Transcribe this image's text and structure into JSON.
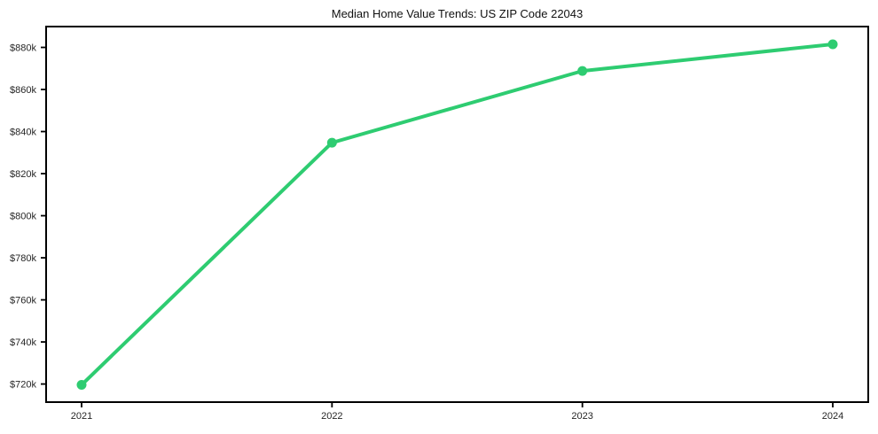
{
  "chart_data": {
    "type": "line",
    "title": "Median Home Value Trends: US ZIP Code 22043",
    "xlabel": "",
    "ylabel": "",
    "x": [
      "2021",
      "2022",
      "2023",
      "2024"
    ],
    "series": [
      {
        "name": "Median Home Value",
        "values": [
          719600,
          834700,
          868800,
          881500
        ]
      }
    ],
    "y_ticks": [
      {
        "value": 720000,
        "label": "$720k"
      },
      {
        "value": 740000,
        "label": "$740k"
      },
      {
        "value": 760000,
        "label": "$760k"
      },
      {
        "value": 780000,
        "label": "$780k"
      },
      {
        "value": 800000,
        "label": "$800k"
      },
      {
        "value": 820000,
        "label": "$820k"
      },
      {
        "value": 840000,
        "label": "$840k"
      },
      {
        "value": 860000,
        "label": "$860k"
      },
      {
        "value": 880000,
        "label": "$880k"
      }
    ],
    "ylim": [
      711400,
      889900
    ],
    "grid": false,
    "legend": "none",
    "marker": "circle",
    "colors": {
      "line": "#2ecc71",
      "marker": "#2ecc71",
      "frame": "#000000",
      "tick_text": "#262626",
      "background": "#ffffff"
    }
  }
}
